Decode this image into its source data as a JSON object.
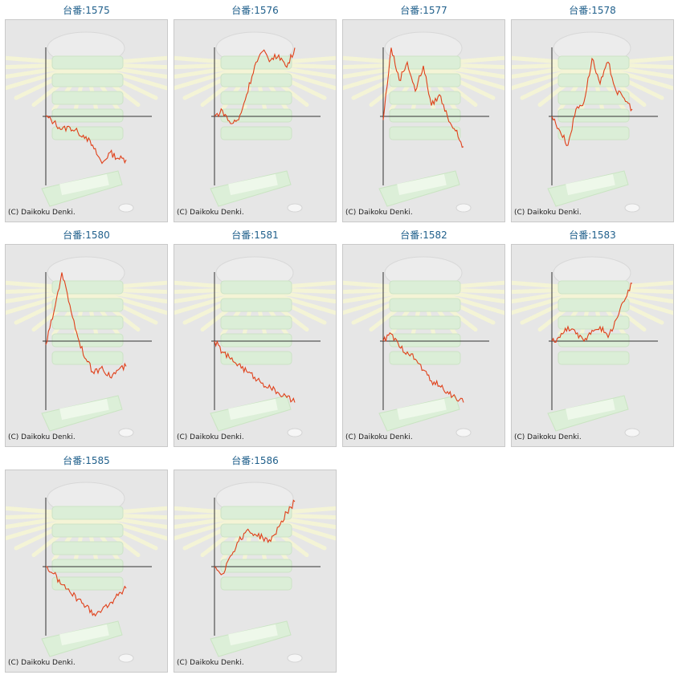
{
  "copyright": "(C) Daikoku Denki.",
  "line_color": "#e0401a",
  "chart_data": [
    {
      "type": "line",
      "title": "台番:1575",
      "x": [
        0,
        10,
        20,
        30,
        40,
        50,
        60,
        70,
        80,
        90,
        100
      ],
      "y": [
        0,
        -8,
        -18,
        -15,
        -22,
        -28,
        -45,
        -65,
        -50,
        -58,
        -60
      ]
    },
    {
      "type": "line",
      "title": "台番:1576",
      "x": [
        0,
        10,
        20,
        30,
        40,
        50,
        60,
        70,
        80,
        90,
        100
      ],
      "y": [
        0,
        8,
        -10,
        -5,
        30,
        70,
        90,
        78,
        85,
        68,
        95
      ]
    },
    {
      "type": "line",
      "title": "台番:1577",
      "x": [
        0,
        10,
        20,
        30,
        40,
        50,
        60,
        70,
        80,
        90,
        100
      ],
      "y": [
        -5,
        95,
        50,
        75,
        35,
        70,
        15,
        30,
        0,
        -20,
        -42
      ]
    },
    {
      "type": "line",
      "title": "台番:1578",
      "x": [
        0,
        10,
        20,
        30,
        40,
        50,
        60,
        70,
        80,
        90,
        100
      ],
      "y": [
        0,
        -20,
        -40,
        10,
        20,
        80,
        45,
        75,
        35,
        25,
        10
      ]
    },
    {
      "type": "line",
      "title": "台番:1580",
      "x": [
        0,
        10,
        20,
        30,
        40,
        50,
        60,
        70,
        80,
        90,
        100
      ],
      "y": [
        -5,
        40,
        95,
        50,
        5,
        -25,
        -45,
        -35,
        -50,
        -40,
        -35
      ]
    },
    {
      "type": "line",
      "title": "台番:1581",
      "x": [
        0,
        10,
        20,
        30,
        40,
        50,
        60,
        70,
        80,
        90,
        100
      ],
      "y": [
        0,
        -15,
        -25,
        -32,
        -42,
        -50,
        -58,
        -65,
        -72,
        -78,
        -85
      ]
    },
    {
      "type": "line",
      "title": "台番:1582",
      "x": [
        0,
        10,
        20,
        30,
        40,
        50,
        60,
        70,
        80,
        90,
        100
      ],
      "y": [
        0,
        10,
        -8,
        -15,
        -25,
        -40,
        -55,
        -62,
        -70,
        -78,
        -85
      ]
    },
    {
      "type": "line",
      "title": "台番:1583",
      "x": [
        0,
        10,
        20,
        30,
        40,
        50,
        60,
        70,
        80,
        90,
        100
      ],
      "y": [
        0,
        5,
        20,
        10,
        0,
        15,
        20,
        5,
        30,
        55,
        80
      ]
    },
    {
      "type": "line",
      "title": "台番:1585",
      "x": [
        0,
        10,
        20,
        30,
        40,
        50,
        60,
        70,
        80,
        90,
        100
      ],
      "y": [
        0,
        -10,
        -25,
        -35,
        -45,
        -55,
        -65,
        -60,
        -50,
        -40,
        -30
      ]
    },
    {
      "type": "line",
      "title": "台番:1586",
      "x": [
        0,
        10,
        20,
        30,
        40,
        50,
        60,
        70,
        80,
        90,
        100
      ],
      "y": [
        0,
        -10,
        15,
        35,
        50,
        45,
        40,
        35,
        55,
        75,
        90
      ]
    }
  ]
}
